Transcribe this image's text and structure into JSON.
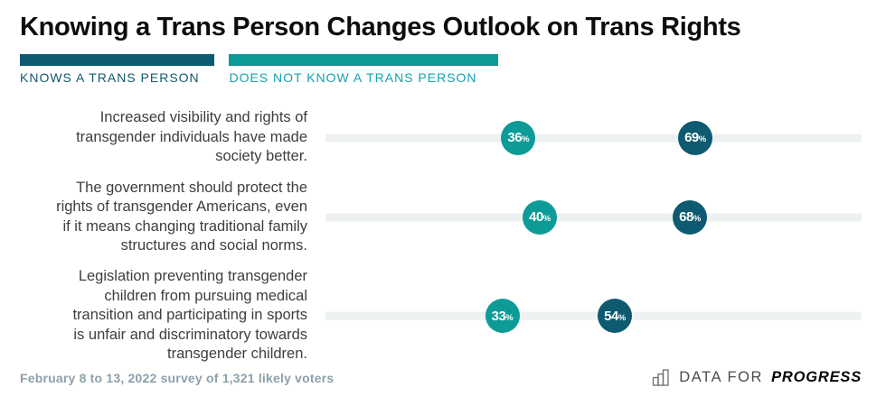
{
  "header": {
    "title": "Knowing a Trans Person Changes Outlook on Trans Rights"
  },
  "legend": {
    "items": [
      {
        "key": "knows",
        "label": "KNOWS A TRANS PERSON",
        "color": "#0e5a70"
      },
      {
        "key": "does_not_know",
        "label": "DOES NOT KNOW A TRANS PERSON",
        "color": "#0d9b98"
      }
    ]
  },
  "chart_data": {
    "type": "scatter",
    "subtype": "dot-plot",
    "unit": "%",
    "xlim": [
      0,
      100
    ],
    "grid": false,
    "legend_position": "top-left",
    "series_names": [
      "Knows a trans person",
      "Does not know a trans person"
    ],
    "rows": [
      {
        "statement": "Increased visibility and rights of\ntransgender individuals have made\nsociety better.",
        "knows": 69,
        "does_not_know": 36
      },
      {
        "statement": "The government should protect the\nrights of transgender Americans, even\nif it means changing traditional family\nstructures and social norms.",
        "knows": 68,
        "does_not_know": 40
      },
      {
        "statement": "Legislation preventing transgender\nchildren from pursuing medical\ntransition and participating in sports\nis unfair and discriminatory towards\ntransgender children.",
        "knows": 54,
        "does_not_know": 33
      }
    ]
  },
  "footer": {
    "note": "February 8 to 13, 2022 survey of 1,321 likely voters",
    "logo": {
      "icon": "bar-chart-icon",
      "prefix": "DATA FOR",
      "suffix": "PROGRESS"
    }
  },
  "colors": {
    "knows": "#0e5a70",
    "does_not_know": "#0d9b98",
    "legend_knows_text": "#11586e",
    "legend_does_not_know_text": "#14a1ad",
    "track": "#edf1f2",
    "title": "#0d0d0d",
    "statement_text": "#3e3e3e",
    "footer_text": "#8da0ab"
  }
}
